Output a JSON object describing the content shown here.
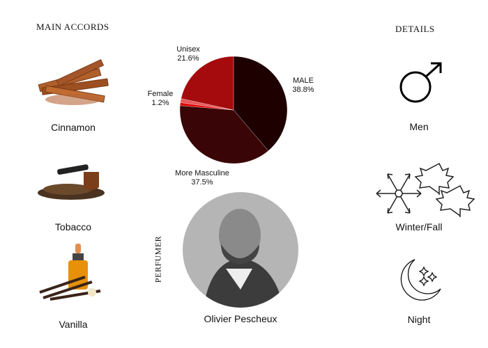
{
  "headings": {
    "accords": "MAIN ACCORDS",
    "details": "DETAILS",
    "perfumer": "PERFUMER"
  },
  "accords": [
    {
      "label": "Cinnamon",
      "icon": "cinnamon-image"
    },
    {
      "label": "Tobacco",
      "icon": "tobacco-image"
    },
    {
      "label": "Vanilla",
      "icon": "vanilla-image"
    }
  ],
  "details": [
    {
      "label": "Men",
      "icon": "male-symbol-icon"
    },
    {
      "label": "Winter/Fall",
      "icon": "snowflake-leaves-icon"
    },
    {
      "label": "Night",
      "icon": "moon-stars-icon"
    }
  ],
  "perfumer": {
    "name": "Olivier Pescheux"
  },
  "chart_data": {
    "type": "pie",
    "start": "top",
    "direction": "clockwise",
    "slices": [
      {
        "label": "MALE",
        "value_label": "38.8%",
        "value": 38.8,
        "color": "#1e0000"
      },
      {
        "label": "More Masculine",
        "value_label": "37.5%",
        "value": 37.5,
        "color": "#3a0506"
      },
      {
        "label": "",
        "value_label": "",
        "value": 0.9,
        "color": "#e00000"
      },
      {
        "label": "Female",
        "value_label": "1.2%",
        "value": 1.2,
        "color": "#e8585a"
      },
      {
        "label": "Unisex",
        "value_label": "21.6%",
        "value": 21.6,
        "color": "#a50b0d"
      }
    ]
  }
}
